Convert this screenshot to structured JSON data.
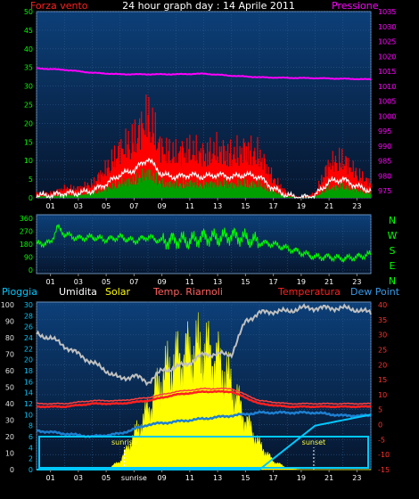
{
  "window": {
    "title": "24 hour graph day : 14 Aprile 2011"
  },
  "colors": {
    "plot_bg_top": "#0c3f78",
    "plot_bg_bottom": "#06162e",
    "grid": "#2d5a8c",
    "forza": "#ff0000",
    "forza_avg": "#ffffff",
    "forza_green": "#00a000",
    "pressione": "#ff00ff",
    "direction": "#00ff00",
    "pioggia": "#00c8ff",
    "umidita": "#c0c0c0",
    "solar": "#ffff00",
    "riarnoli": "#ff4040",
    "temperatura": "#ff2020",
    "dewpoint": "#1e7fd0",
    "tick_green": "#00ff00",
    "tick_magenta": "#ff00ff",
    "tick_cyan": "#00c8ff",
    "tick_red": "#ff3030",
    "tick_white": "#e0e0e0",
    "tick_yellow": "#ffff40"
  },
  "x_ticks": [
    "01",
    "03",
    "05",
    "07",
    "09",
    "11",
    "13",
    "15",
    "17",
    "19",
    "21",
    "23"
  ],
  "x_ticks_bottom": [
    "01",
    "03",
    "05",
    "sunrise",
    "09",
    "11",
    "13",
    "15",
    "17",
    "19",
    "21",
    "23"
  ],
  "chart_data": [
    {
      "type": "line",
      "title": "24 hour graph day : 14 Aprile 2011",
      "series": [
        {
          "name": "Forza vento",
          "x": [
            0,
            1,
            2,
            3,
            4,
            5,
            6,
            7,
            8,
            9,
            10,
            11,
            12,
            13,
            14,
            15,
            16,
            17,
            18,
            19,
            20,
            21,
            22,
            23,
            24
          ],
          "values": [
            1,
            1,
            2,
            2,
            3,
            6,
            10,
            12,
            17,
            10,
            9,
            10,
            9,
            10,
            9,
            10,
            9,
            4,
            1,
            0,
            1,
            7,
            8,
            5,
            3
          ]
        },
        {
          "name": "Pressione",
          "x": [
            0,
            2,
            4,
            6,
            8,
            10,
            12,
            14,
            16,
            18,
            20,
            22,
            24
          ],
          "values": [
            1016,
            1015.5,
            1014.5,
            1014,
            1014,
            1014,
            1014.2,
            1013.5,
            1013,
            1012.8,
            1012.7,
            1012.5,
            1012.3
          ]
        }
      ],
      "y_left": {
        "label": "Forza vento",
        "ticks": [
          0,
          5,
          10,
          15,
          20,
          25,
          30,
          35,
          40,
          45,
          50
        ]
      },
      "y_right": {
        "label": "Pressione",
        "ticks": [
          975,
          980,
          985,
          990,
          995,
          1000,
          1005,
          1010,
          1015,
          1020,
          1025,
          1030,
          1035
        ]
      }
    },
    {
      "type": "line",
      "series": [
        {
          "name": "direzione",
          "x": [
            0,
            1,
            1.5,
            2,
            3,
            4,
            5,
            6,
            7,
            8,
            9,
            10,
            11,
            12,
            13,
            14,
            15,
            16,
            17,
            18,
            19,
            20,
            21,
            22,
            23,
            24
          ],
          "values": [
            180,
            190,
            300,
            250,
            220,
            230,
            210,
            230,
            200,
            230,
            200,
            210,
            200,
            230,
            220,
            240,
            220,
            190,
            180,
            150,
            120,
            90,
            90,
            80,
            90,
            110
          ]
        }
      ],
      "y_left": {
        "ticks": [
          0,
          90,
          180,
          270,
          360
        ]
      },
      "y_right": {
        "labels": [
          "N",
          "W",
          "S",
          "E",
          "N"
        ]
      }
    },
    {
      "type": "line",
      "series": [
        {
          "name": "Umidita",
          "x": [
            0,
            1,
            2,
            3,
            4,
            5,
            6,
            7,
            8,
            9,
            10,
            11,
            12,
            13,
            14,
            15,
            16,
            17,
            18,
            19,
            20,
            21,
            22,
            23,
            24
          ],
          "values": [
            82,
            80,
            75,
            70,
            65,
            60,
            55,
            57,
            53,
            60,
            62,
            65,
            70,
            70,
            70,
            90,
            95,
            96,
            96,
            98,
            98,
            98,
            98,
            97,
            95
          ]
        },
        {
          "name": "Solar",
          "x": [
            0,
            5,
            6,
            7,
            8,
            9,
            10,
            11,
            12,
            13,
            14,
            15,
            16,
            17,
            18,
            19,
            24
          ],
          "values": [
            0,
            0,
            5,
            20,
            35,
            55,
            65,
            70,
            72,
            65,
            50,
            30,
            15,
            5,
            1,
            0,
            0
          ]
        },
        {
          "name": "Temp. Riarnoli",
          "x": [
            0,
            2,
            4,
            6,
            8,
            10,
            12,
            14,
            16,
            18,
            20,
            22,
            24
          ],
          "values": [
            7,
            7,
            8,
            8,
            9,
            11,
            12,
            12,
            8,
            7,
            7,
            7,
            7
          ]
        },
        {
          "name": "Temperatura",
          "x": [
            0,
            2,
            4,
            6,
            8,
            10,
            12,
            14,
            16,
            18,
            20,
            22,
            24
          ],
          "values": [
            6,
            6,
            7,
            7,
            8,
            10,
            11,
            11,
            7,
            6,
            6,
            6,
            6
          ]
        },
        {
          "name": "Dew Point",
          "x": [
            0,
            2,
            4,
            6,
            8,
            10,
            12,
            14,
            16,
            18,
            20,
            22,
            24
          ],
          "values": [
            -2,
            -3,
            -4,
            -3,
            0,
            1,
            2,
            3,
            4,
            4,
            4,
            3,
            3
          ]
        },
        {
          "name": "Pioggia",
          "x": [
            0,
            16,
            18,
            20,
            22,
            24
          ],
          "values": [
            0,
            0,
            4,
            8,
            9,
            10
          ]
        }
      ],
      "labels": {
        "pioggia": "Pioggia",
        "umidita": "Umidita",
        "solar": "Solar",
        "riarnoli": "Temp. Riarnoli",
        "temperatura": "Temperatura",
        "dewpoint": "Dew Point"
      },
      "annotations": [
        "sunrise",
        "sunset"
      ],
      "y_left_a": {
        "ticks": [
          0,
          10,
          20,
          30,
          40,
          50,
          60,
          70,
          80,
          90,
          100
        ]
      },
      "y_left_b": {
        "ticks": [
          0,
          2,
          4,
          6,
          8,
          10,
          12,
          14,
          16,
          18,
          20,
          22,
          24,
          26,
          28,
          30
        ]
      },
      "y_right": {
        "ticks": [
          -15,
          -10,
          -5,
          0,
          5,
          10,
          15,
          20,
          25,
          30,
          35,
          40
        ]
      }
    }
  ]
}
